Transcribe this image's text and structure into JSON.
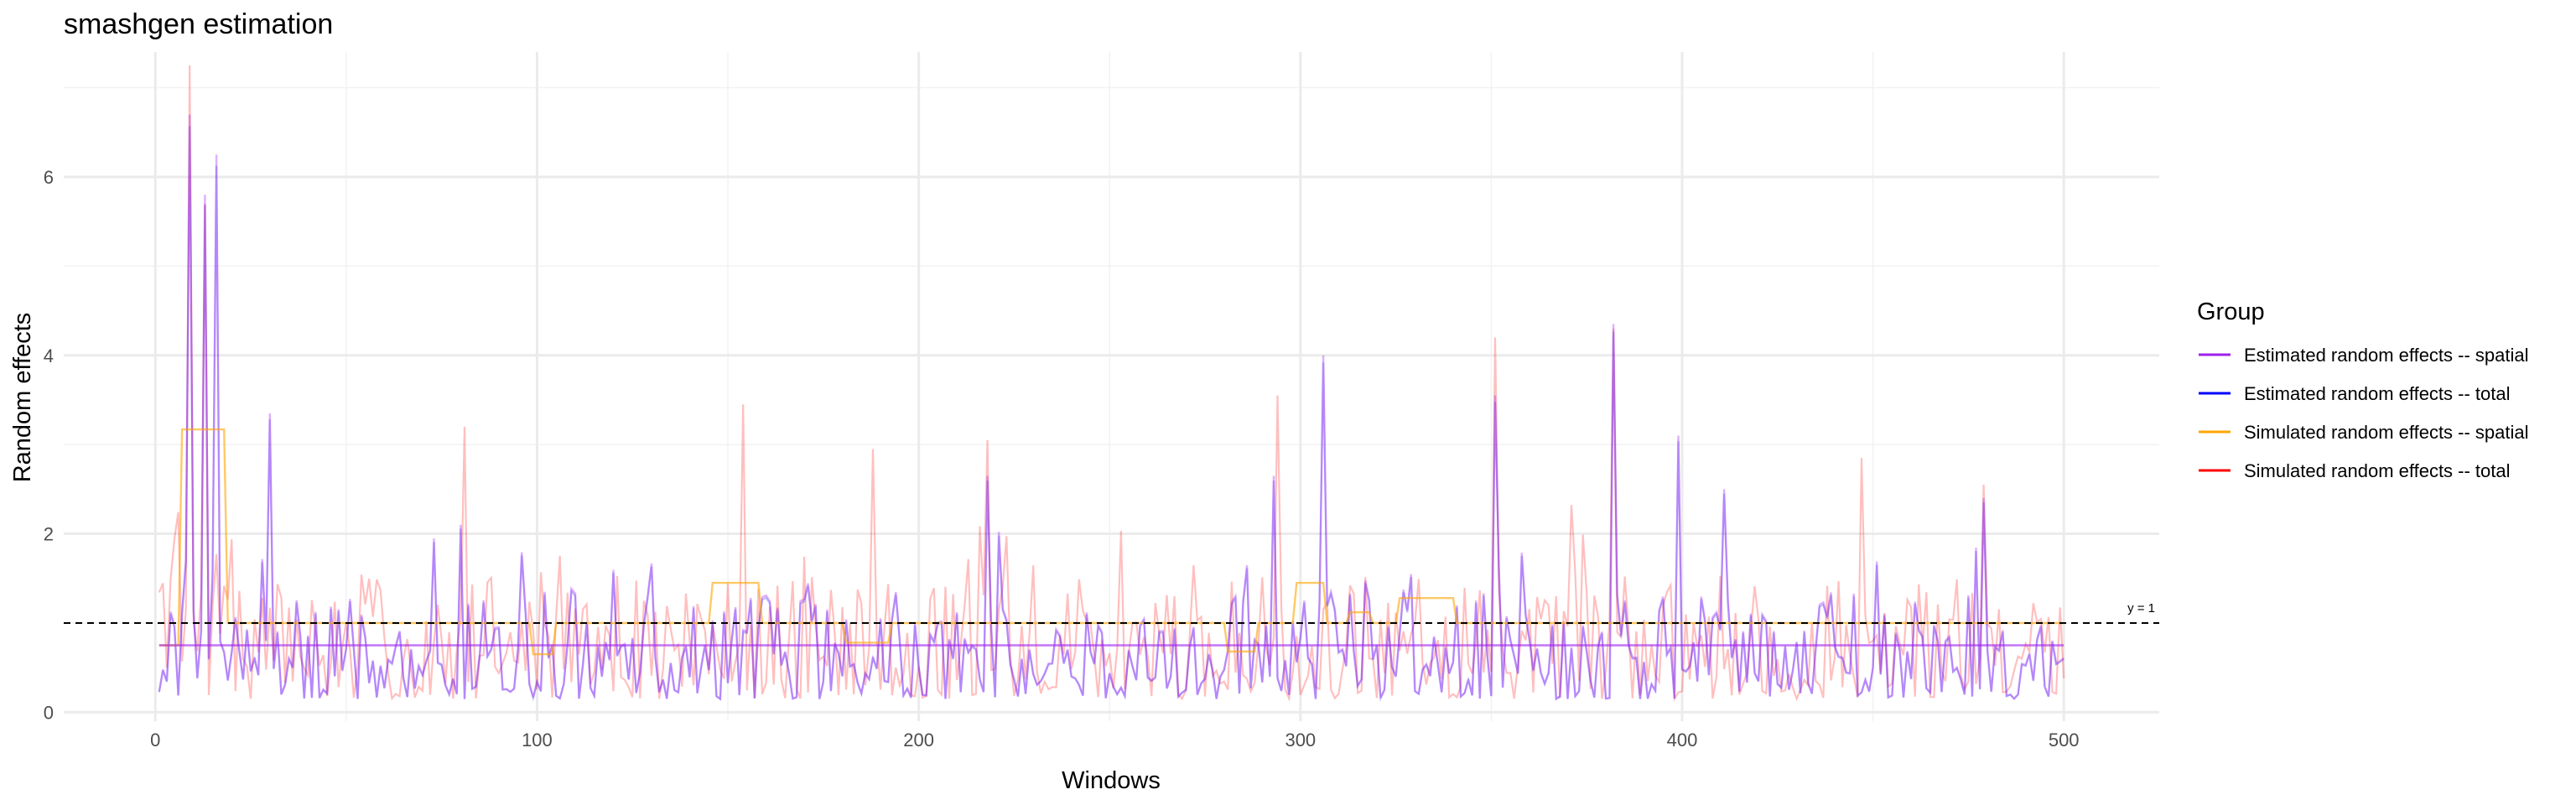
{
  "chart_data": {
    "type": "line",
    "title": "smashgen estimation",
    "xlabel": "Windows",
    "ylabel": "Random effects",
    "xlim": [
      -24,
      525
    ],
    "ylim": [
      -0.1,
      7.4
    ],
    "x_ticks": [
      0,
      100,
      200,
      300,
      400,
      500
    ],
    "y_ticks": [
      0,
      2,
      4,
      6
    ],
    "grid": true,
    "legend_position": "right",
    "legend_title": "Group",
    "reference_line": {
      "y": 1,
      "label": "y = 1",
      "style": "dashed",
      "color": "#000000"
    },
    "series": [
      {
        "name": "Estimated random effects -- spatial",
        "color": "#a020f0",
        "opacity": 0.35,
        "random_effects_peaks": [
          [
            9,
            6.7
          ],
          [
            13,
            5.8
          ],
          [
            16,
            6.25
          ],
          [
            30,
            3.35
          ],
          [
            80,
            2.1
          ],
          [
            218,
            2.65
          ],
          [
            293,
            2.65
          ],
          [
            306,
            4.0
          ],
          [
            351,
            3.55
          ],
          [
            382,
            4.35
          ],
          [
            399,
            3.1
          ],
          [
            411,
            2.5
          ],
          [
            479,
            2.4
          ]
        ]
      },
      {
        "name": "Estimated random effects -- total",
        "color": "#0000ff",
        "opacity": 0.25
      },
      {
        "name": "Simulated random effects -- spatial",
        "color": "#ffa500",
        "opacity": 0.6,
        "steps": [
          [
            1,
            6,
            0.75
          ],
          [
            7,
            18,
            3.17
          ],
          [
            19,
            98,
            1.0
          ],
          [
            99,
            104,
            0.65
          ],
          [
            105,
            145,
            1.0
          ],
          [
            146,
            158,
            1.45
          ],
          [
            159,
            180,
            1.0
          ],
          [
            181,
            192,
            0.78
          ],
          [
            193,
            280,
            1.0
          ],
          [
            281,
            288,
            0.68
          ],
          [
            289,
            298,
            1.0
          ],
          [
            299,
            306,
            1.45
          ],
          [
            307,
            312,
            1.0
          ],
          [
            313,
            318,
            1.12
          ],
          [
            319,
            325,
            1.0
          ],
          [
            326,
            340,
            1.28
          ],
          [
            341,
            500,
            1.0
          ]
        ]
      },
      {
        "name": "Simulated random effects -- total",
        "color": "#ff0000",
        "opacity": 0.15,
        "random_effects_peaks": [
          [
            9,
            7.25
          ],
          [
            13,
            5.7
          ],
          [
            81,
            3.2
          ],
          [
            154,
            3.45
          ],
          [
            188,
            2.95
          ],
          [
            218,
            3.05
          ],
          [
            294,
            3.55
          ],
          [
            351,
            4.2
          ],
          [
            382,
            4.3
          ],
          [
            447,
            2.85
          ],
          [
            479,
            2.55
          ]
        ]
      }
    ],
    "flat_line": {
      "series": "Estimated random effects -- spatial",
      "y": 0.75,
      "x": [
        1,
        500
      ]
    },
    "n_windows": 500
  }
}
